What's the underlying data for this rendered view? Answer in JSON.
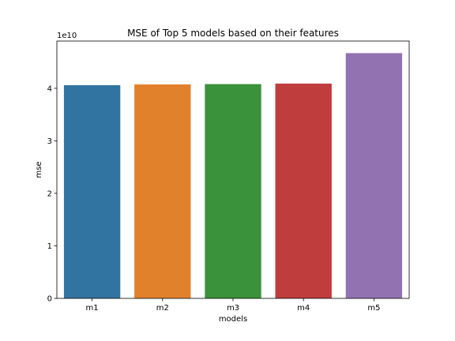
{
  "chart_data": {
    "type": "bar",
    "title": "MSE of Top 5 models based on their features",
    "xlabel": "models",
    "ylabel": "mse",
    "offset_text": "1e10",
    "categories": [
      "m1",
      "m2",
      "m3",
      "m4",
      "m5"
    ],
    "values": [
      40600000000,
      40750000000,
      40800000000,
      40900000000,
      46700000000
    ],
    "colors": [
      "#3274a1",
      "#e1812c",
      "#3a923a",
      "#c03d3e",
      "#9372b2"
    ],
    "yticks": [
      0,
      10000000000,
      20000000000,
      30000000000,
      40000000000
    ],
    "ytick_labels": [
      "0",
      "1",
      "2",
      "3",
      "4"
    ],
    "ylim": [
      0,
      49000000000
    ],
    "grid": false,
    "legend": "none"
  }
}
